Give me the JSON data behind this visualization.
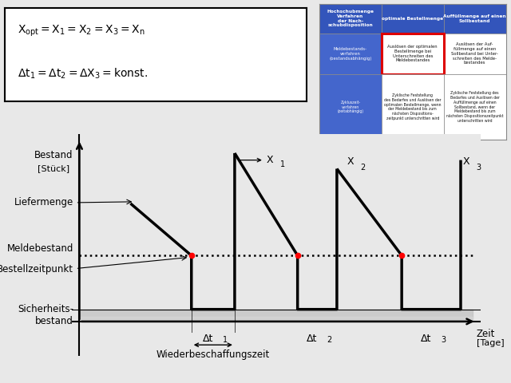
{
  "bg_color": "#e8e8e8",
  "formula1": "X_{opt} =X_1= X_2 = X_3 =X_n",
  "formula2": "\\Delta t_1= \\Delta t_2 = \\Delta X_3 =konst.",
  "ylabel_line1": "Bestand",
  "ylabel_line2": "[Stück]",
  "xlabel_line1": "Zeit",
  "xlabel_line2": "[Tage]",
  "label_liefermenge": "Liefermenge",
  "label_meldebestand": "Meldebestand",
  "label_bestellzeitpunkt": "Bestellzeitpunkt",
  "label_sicherheitsbestand_1": "Sicherheits-",
  "label_sicherheitsbestand_2": "bestand",
  "label_wiederbeschaffungszeit": "Wiederbeschaffungszeit",
  "label_x1": "X",
  "label_x1_sub": "1",
  "label_x2": "X",
  "label_x2_sub": "2",
  "label_x3": "X",
  "label_x3_sub": "3",
  "label_dt1": "Δt",
  "label_dt1_sub": "1",
  "label_dt2": "Δt",
  "label_dt2_sub": "2",
  "label_dt3": "Δt",
  "label_dt3_sub": "3",
  "table_colors": {
    "header_blue": "#3355bb",
    "cell_blue": "#4466cc",
    "cell_white": "#ffffff",
    "text_white": "#ffffff",
    "text_black": "#111111",
    "red_border": "#dd0000"
  }
}
